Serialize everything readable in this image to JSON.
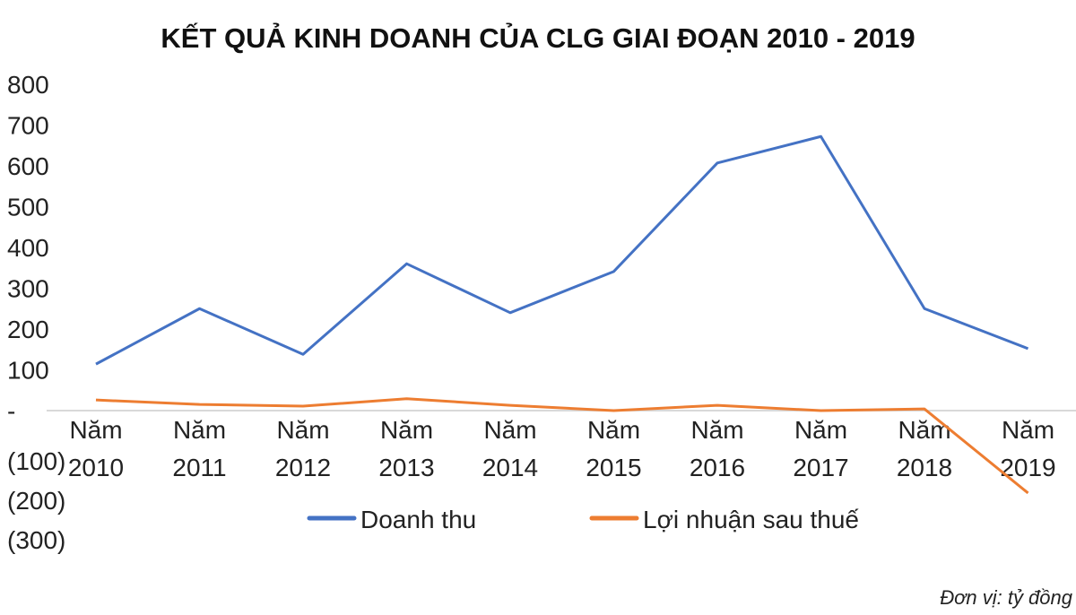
{
  "chart_data": {
    "type": "line",
    "title": "KẾT QUẢ KINH DOANH CỦA CLG GIAI ĐOẠN 2010 - 2019",
    "categories": [
      [
        "Năm",
        "2010"
      ],
      [
        "Năm",
        "2011"
      ],
      [
        "Năm",
        "2012"
      ],
      [
        "Năm",
        "2013"
      ],
      [
        "Năm",
        "2014"
      ],
      [
        "Năm",
        "2015"
      ],
      [
        "Năm",
        "2016"
      ],
      [
        "Năm",
        "2017"
      ],
      [
        "Năm",
        "2018"
      ],
      [
        "Năm",
        "2019"
      ]
    ],
    "y_ticks": [
      {
        "value": 800,
        "label": "800"
      },
      {
        "value": 700,
        "label": "700"
      },
      {
        "value": 600,
        "label": "600"
      },
      {
        "value": 500,
        "label": "500"
      },
      {
        "value": 400,
        "label": "400"
      },
      {
        "value": 300,
        "label": "300"
      },
      {
        "value": 200,
        "label": "200"
      },
      {
        "value": 100,
        "label": "100"
      },
      {
        "value": 0,
        "label": "-"
      },
      {
        "value": -100,
        "label": "(100)"
      },
      {
        "value": -200,
        "label": "(200)"
      },
      {
        "value": -300,
        "label": "(300)"
      }
    ],
    "ylim": [
      -300,
      800
    ],
    "grid": false,
    "legend_position": "bottom",
    "series": [
      {
        "name": "Doanh thu",
        "color": "#4472c4",
        "values": [
          114,
          250,
          138,
          360,
          240,
          341,
          607,
          672,
          250,
          152
        ]
      },
      {
        "name": "Lợi nhuận sau thuế",
        "color": "#ed7d31",
        "values": [
          26,
          15,
          11,
          29,
          13,
          0,
          13,
          0,
          4,
          -202
        ]
      }
    ],
    "unit_note": "Đơn vị: tỷ đồng"
  }
}
